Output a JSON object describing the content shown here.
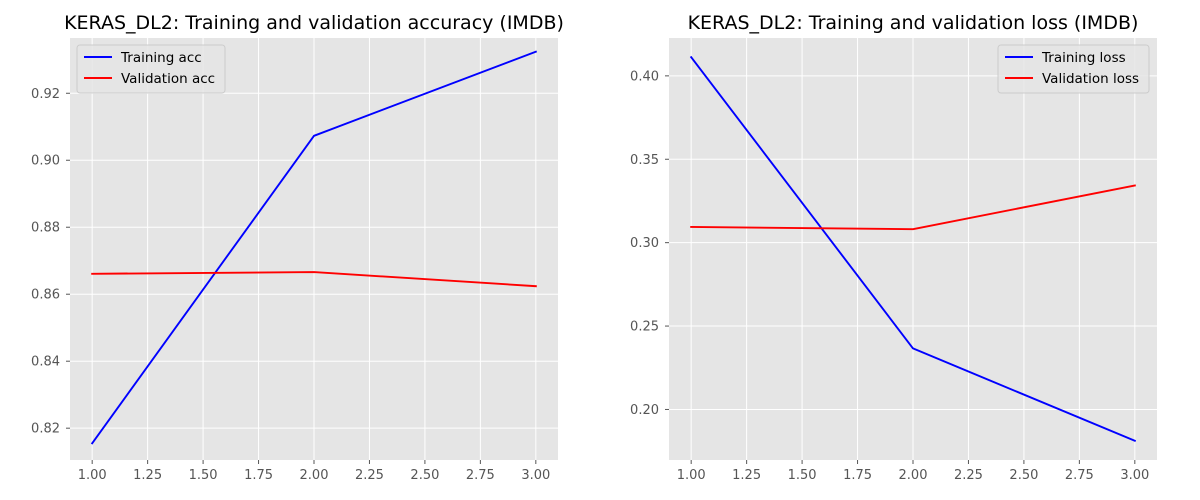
{
  "chart_data": [
    {
      "type": "line",
      "title": "KERAS_DL2: Training and validation accuracy (IMDB)",
      "xlabel": "",
      "ylabel": "",
      "x": [
        1,
        2,
        3
      ],
      "xlim": [
        0.9,
        3.1
      ],
      "ylim": [
        0.8105,
        0.9365
      ],
      "xticks": [
        1.0,
        1.25,
        1.5,
        1.75,
        2.0,
        2.25,
        2.5,
        2.75,
        3.0
      ],
      "xtick_labels": [
        "1.00",
        "1.25",
        "1.50",
        "1.75",
        "2.00",
        "2.25",
        "2.50",
        "2.75",
        "3.00"
      ],
      "yticks": [
        0.82,
        0.84,
        0.86,
        0.88,
        0.9,
        0.92
      ],
      "ytick_labels": [
        "0.82",
        "0.84",
        "0.86",
        "0.88",
        "0.90",
        "0.92"
      ],
      "legend_position": "top-left",
      "grid": true,
      "series": [
        {
          "name": "Training acc",
          "color": "#0000ff",
          "values": [
            0.8155,
            0.9073,
            0.9324
          ]
        },
        {
          "name": "Validation acc",
          "color": "#ff0000",
          "values": [
            0.8661,
            0.8666,
            0.8624
          ]
        }
      ]
    },
    {
      "type": "line",
      "title": "KERAS_DL2: Training and validation loss (IMDB)",
      "xlabel": "",
      "ylabel": "",
      "x": [
        1,
        2,
        3
      ],
      "xlim": [
        0.9,
        3.1
      ],
      "ylim": [
        0.1697,
        0.4227
      ],
      "xticks": [
        1.0,
        1.25,
        1.5,
        1.75,
        2.0,
        2.25,
        2.5,
        2.75,
        3.0
      ],
      "xtick_labels": [
        "1.00",
        "1.25",
        "1.50",
        "1.75",
        "2.00",
        "2.25",
        "2.50",
        "2.75",
        "3.00"
      ],
      "yticks": [
        0.2,
        0.25,
        0.3,
        0.35,
        0.4
      ],
      "ytick_labels": [
        "0.20",
        "0.25",
        "0.30",
        "0.35",
        "0.40"
      ],
      "legend_position": "top-right",
      "grid": true,
      "series": [
        {
          "name": "Training loss",
          "color": "#0000ff",
          "values": [
            0.4112,
            0.2366,
            0.1812
          ]
        },
        {
          "name": "Validation loss",
          "color": "#ff0000",
          "values": [
            0.3094,
            0.3081,
            0.3343
          ]
        }
      ]
    }
  ],
  "style": {
    "plot_background": "#e5e5e5",
    "grid_color": "#ffffff",
    "tick_color": "#555555"
  }
}
